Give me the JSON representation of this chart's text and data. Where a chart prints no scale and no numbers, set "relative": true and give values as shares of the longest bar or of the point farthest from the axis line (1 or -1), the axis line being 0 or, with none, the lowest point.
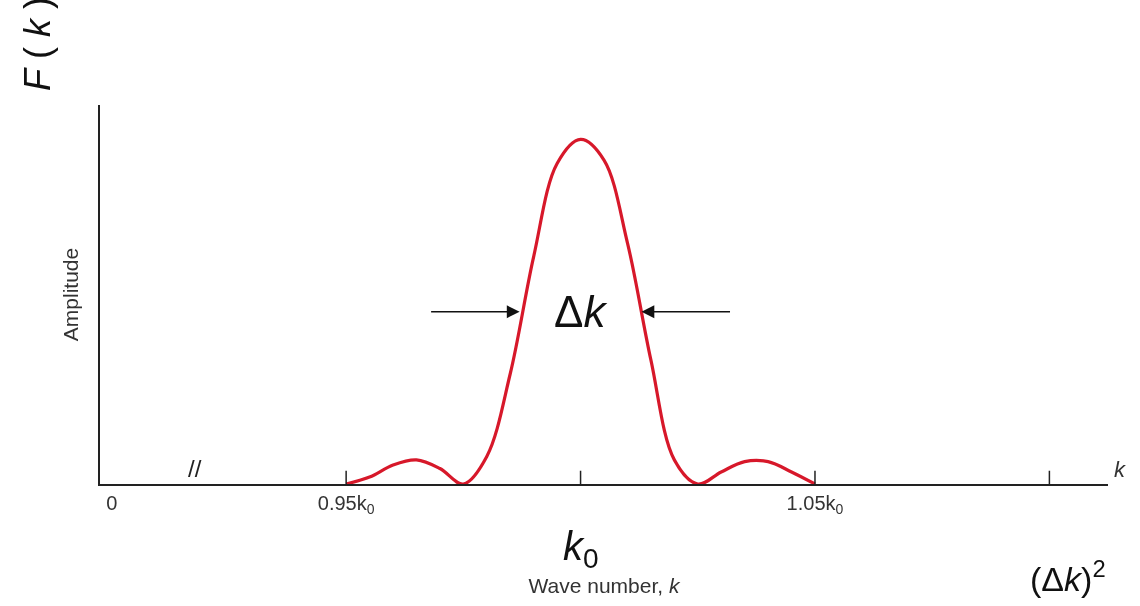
{
  "chart_data": {
    "type": "line",
    "relative": true,
    "xlabel": "Wave number, k",
    "ylabel": "Amplitude",
    "categories": [
      "0",
      null,
      null,
      null,
      null,
      null,
      null,
      null,
      null,
      null,
      "0.95k$_{0}$",
      null,
      null,
      null,
      null,
      null,
      null,
      null,
      null,
      null,
      null,
      null,
      null,
      null,
      null,
      null,
      null,
      null,
      null,
      null,
      "1.05k$_{0}$",
      null,
      null,
      null,
      null,
      null,
      null,
      null,
      null,
      null,
      null,
      null,
      null
    ],
    "series": [
      {
        "color": "#d7182a",
        "values": [
          null,
          null,
          null,
          null,
          null,
          null,
          null,
          null,
          null,
          null,
          0,
          0.02,
          0.055,
          0.07,
          0.045,
          0,
          0.08,
          0.32,
          0.66,
          0.93,
          1,
          0.94,
          0.7,
          0.36,
          0.07,
          0,
          0.035,
          0.065,
          0.065,
          0.035,
          0,
          null,
          null,
          null,
          null,
          null,
          null,
          null,
          null,
          null,
          null,
          null,
          null
        ]
      }
    ],
    "annotations": [
      "//",
      "k",
      "F ( k )",
      "k$_{0}$",
      "Δk",
      "(Δk)$^{2}$"
    ],
    "marker": "none",
    "line_style": "solid"
  }
}
